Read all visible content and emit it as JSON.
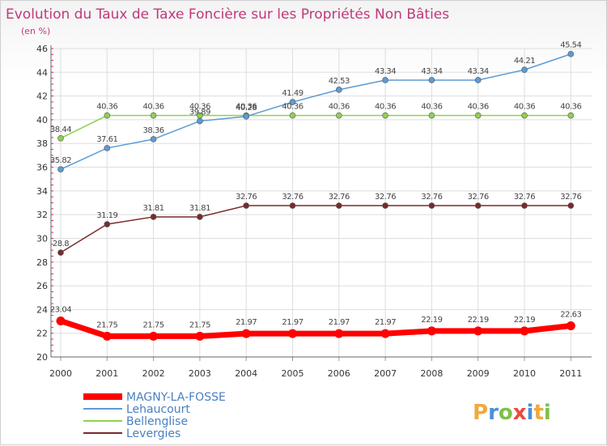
{
  "chart_data": {
    "type": "line",
    "title": "Evolution du Taux de Taxe Foncière sur les Propriétés Non Bâties",
    "subtitle": "(en %)",
    "x": [
      "2000",
      "2001",
      "2002",
      "2003",
      "2004",
      "2005",
      "2006",
      "2007",
      "2008",
      "2009",
      "2010",
      "2011"
    ],
    "ylim": [
      20,
      46
    ],
    "yticks": [
      20,
      22,
      24,
      26,
      28,
      30,
      32,
      34,
      36,
      38,
      40,
      42,
      44,
      46
    ],
    "grid": true,
    "legend_position": "bottom-left",
    "series": [
      {
        "name": "MAGNY-LA-FOSSE",
        "color": "#ff0000",
        "values": [
          23.04,
          21.75,
          21.75,
          21.75,
          21.97,
          21.97,
          21.97,
          21.97,
          22.19,
          22.19,
          22.19,
          22.63
        ],
        "labels": [
          "23.04",
          "21.75",
          "21.75",
          "21.75",
          "21.97",
          "21.97",
          "21.97",
          "21.97",
          "22.19",
          "22.19",
          "22.19",
          "22.63"
        ]
      },
      {
        "name": "Lehaucourt",
        "color": "#5b9bd5",
        "values": [
          35.82,
          37.61,
          38.36,
          39.89,
          40.28,
          41.49,
          42.53,
          43.34,
          43.34,
          43.34,
          44.21,
          45.54
        ],
        "labels": [
          "35.82",
          "37.61",
          "38.36",
          "39.89",
          "40.28",
          "41.49",
          "42.53",
          "43.34",
          "43.34",
          "43.34",
          "44.21",
          "45.54"
        ]
      },
      {
        "name": "Bellenglise",
        "color": "#8fd14f",
        "values": [
          38.44,
          40.36,
          40.36,
          40.36,
          40.36,
          40.36,
          40.36,
          40.36,
          40.36,
          40.36,
          40.36,
          40.36
        ],
        "labels": [
          "38.44",
          "40.36",
          "40.36",
          "40.36",
          "40.36",
          "40.36",
          "40.36",
          "40.36",
          "40.36",
          "40.36",
          "40.36",
          "40.36"
        ]
      },
      {
        "name": "Levergies",
        "color": "#7a2a2a",
        "values": [
          28.8,
          31.19,
          31.81,
          31.81,
          32.76,
          32.76,
          32.76,
          32.76,
          32.76,
          32.76,
          32.76,
          32.76
        ],
        "labels": [
          "28.8",
          "31.19",
          "31.81",
          "31.81",
          "32.76",
          "32.76",
          "32.76",
          "32.76",
          "32.76",
          "32.76",
          "32.76",
          "32.76"
        ]
      }
    ]
  },
  "brand": {
    "text": "Proxiti"
  }
}
